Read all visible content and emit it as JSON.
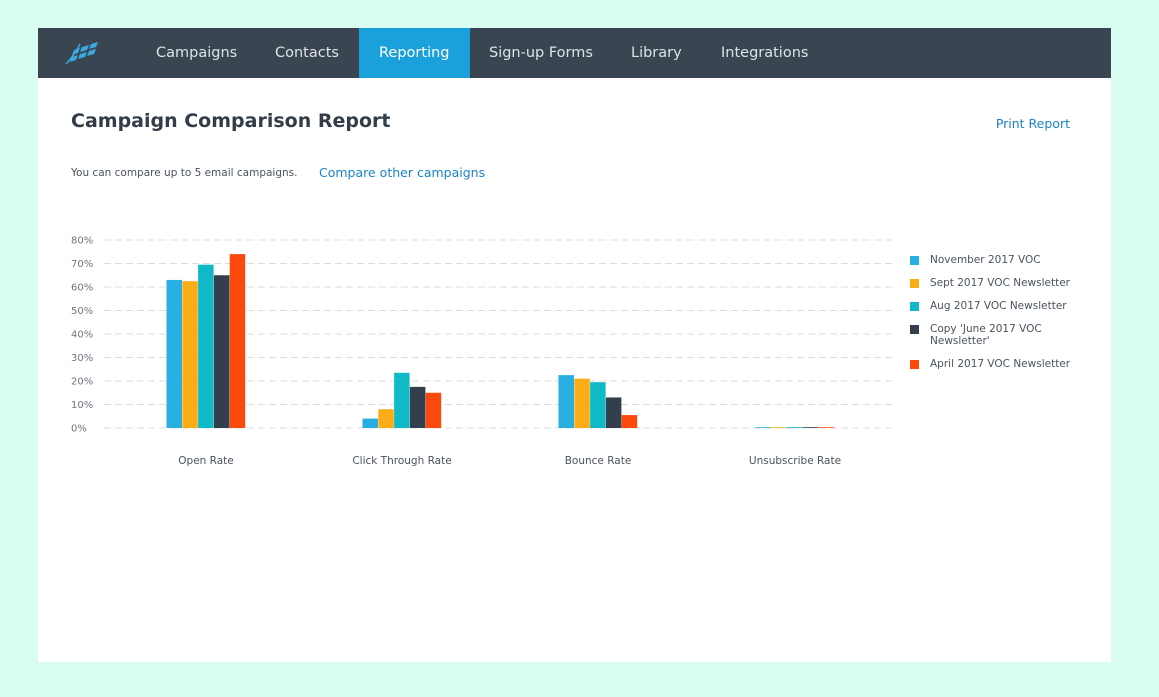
{
  "nav": {
    "logo": "logo-icon",
    "items": [
      {
        "label": "Campaigns",
        "active": false
      },
      {
        "label": "Contacts",
        "active": false
      },
      {
        "label": "Reporting",
        "active": true
      },
      {
        "label": "Sign-up Forms",
        "active": false
      },
      {
        "label": "Library",
        "active": false
      },
      {
        "label": "Integrations",
        "active": false
      }
    ]
  },
  "page": {
    "title": "Campaign Comparison Report",
    "print_label": "Print Report",
    "hint": "You can compare up to 5 email campaigns.",
    "compare_label": "Compare other campaigns"
  },
  "colors": {
    "nav_bg": "#3a4552",
    "nav_active": "#1aa0da",
    "link": "#1b84c6",
    "page_bg": "#d9fdf1"
  },
  "chart_data": {
    "type": "bar",
    "categories": [
      "Open Rate",
      "Click Through Rate",
      "Bounce Rate",
      "Unsubscribe Rate"
    ],
    "ylim": [
      0,
      80
    ],
    "yticks": [
      "0%",
      "10%",
      "20%",
      "30%",
      "40%",
      "50%",
      "60%",
      "70%",
      "80%"
    ],
    "grid": true,
    "legend_position": "right",
    "series": [
      {
        "name": "November 2017 VOC",
        "color": "#28aee0",
        "values": [
          63,
          4,
          22.5,
          0.3
        ]
      },
      {
        "name": "Sept 2017 VOC Newsletter",
        "color": "#fbad18",
        "values": [
          62.5,
          8,
          21,
          0.3
        ]
      },
      {
        "name": "Aug 2017 VOC Newsletter",
        "color": "#10b9c6",
        "values": [
          69.5,
          23.5,
          19.5,
          0.3
        ]
      },
      {
        "name": "Copy 'June 2017 VOC Newsletter'",
        "color": "#333f4d",
        "values": [
          65,
          17.5,
          13,
          0.3
        ]
      },
      {
        "name": "April 2017 VOC Newsletter",
        "color": "#fb4a0b",
        "values": [
          74,
          15,
          5.5,
          0.3
        ]
      }
    ]
  }
}
